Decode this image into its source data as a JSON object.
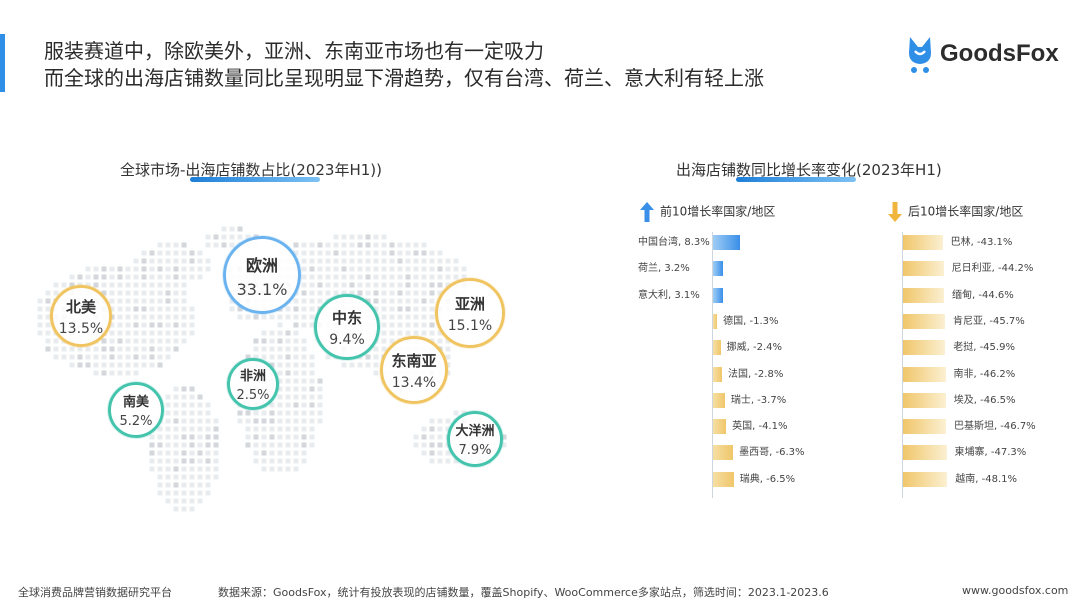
{
  "header": {
    "line1": "服装赛道中，除欧美外，亚洲、东南亚市场也有一定吸力",
    "line2": "而全球的出海店铺数量同比呈现明显下滑趋势，仅有台湾、荷兰、意大利有轻上涨"
  },
  "logo": {
    "text": "GoodsFox"
  },
  "colors": {
    "accent": "#2f8fe6",
    "positive_bar": "#3a8fe8",
    "negative_bar": "#f0c66a",
    "bubble_blue": "#6ab3ef",
    "bubble_gold": "#f0c561",
    "bubble_teal": "#45c4ad"
  },
  "chart_data": [
    {
      "type": "bubble-map",
      "title_prefix": "全球市场-",
      "title_highlight": "出海店铺数占比(2023年H1))",
      "regions": [
        {
          "name": "欧洲",
          "label": "33.1%",
          "value": 33.1,
          "color": "blue"
        },
        {
          "name": "北美",
          "label": "13.5%",
          "value": 13.5,
          "color": "gold"
        },
        {
          "name": "中东",
          "label": "9.4%",
          "value": 9.4,
          "color": "teal"
        },
        {
          "name": "亚洲",
          "label": "15.1%",
          "value": 15.1,
          "color": "gold"
        },
        {
          "name": "东南亚",
          "label": "13.4%",
          "value": 13.4,
          "color": "gold"
        },
        {
          "name": "非洲",
          "label": "2.5%",
          "value": 2.5,
          "color": "teal"
        },
        {
          "name": "南美",
          "label": "5.2%",
          "value": 5.2,
          "color": "teal"
        },
        {
          "name": "大洋洲",
          "label": "7.9%",
          "value": 7.9,
          "color": "teal"
        }
      ]
    },
    {
      "type": "bar",
      "title_prefix": "出海店铺",
      "title_highlight": "数同比增长率变化",
      "title_suffix": "(2023年H1)",
      "top_label": "前10增长率国家/地区",
      "bottom_label": "后10增长率国家/地区",
      "top10": [
        {
          "country": "中国台湾",
          "value": 8.3,
          "label": "中国台湾, 8.3%"
        },
        {
          "country": "荷兰",
          "value": 3.2,
          "label": "荷兰, 3.2%"
        },
        {
          "country": "意大利",
          "value": 3.1,
          "label": "意大利, 3.1%"
        },
        {
          "country": "德国",
          "value": -1.3,
          "label": "德国, -1.3%"
        },
        {
          "country": "挪威",
          "value": -2.4,
          "label": "挪威, -2.4%"
        },
        {
          "country": "法国",
          "value": -2.8,
          "label": "法国, -2.8%"
        },
        {
          "country": "瑞士",
          "value": -3.7,
          "label": "瑞士, -3.7%"
        },
        {
          "country": "英国",
          "value": -4.1,
          "label": "英国, -4.1%"
        },
        {
          "country": "墨西哥",
          "value": -6.3,
          "label": "墨西哥, -6.3%"
        },
        {
          "country": "瑞典",
          "value": -6.5,
          "label": "瑞典, -6.5%"
        }
      ],
      "bottom10": [
        {
          "country": "巴林",
          "value": -43.1,
          "label": "巴林, -43.1%"
        },
        {
          "country": "尼日利亚",
          "value": -44.2,
          "label": "尼日利亚, -44.2%"
        },
        {
          "country": "缅甸",
          "value": -44.6,
          "label": "缅甸, -44.6%"
        },
        {
          "country": "肯尼亚",
          "value": -45.7,
          "label": "肯尼亚, -45.7%"
        },
        {
          "country": "老挝",
          "value": -45.9,
          "label": "老挝, -45.9%"
        },
        {
          "country": "南非",
          "value": -46.2,
          "label": "南非, -46.2%"
        },
        {
          "country": "埃及",
          "value": -46.5,
          "label": "埃及, -46.5%"
        },
        {
          "country": "巴基斯坦",
          "value": -46.7,
          "label": "巴基斯坦, -46.7%"
        },
        {
          "country": "柬埔寨",
          "value": -47.3,
          "label": "柬埔寨, -47.3%"
        },
        {
          "country": "越南",
          "value": -48.1,
          "label": "越南, -48.1%"
        }
      ]
    }
  ],
  "footer": {
    "left": "全球消费品牌营销数据研究平台",
    "source": "数据来源：GoodsFox，统计有投放表现的店铺数量，覆盖Shopify、WooCommerce多家站点，筛选时间：2023.1-2023.6",
    "url": "www.goodsfox.com"
  }
}
